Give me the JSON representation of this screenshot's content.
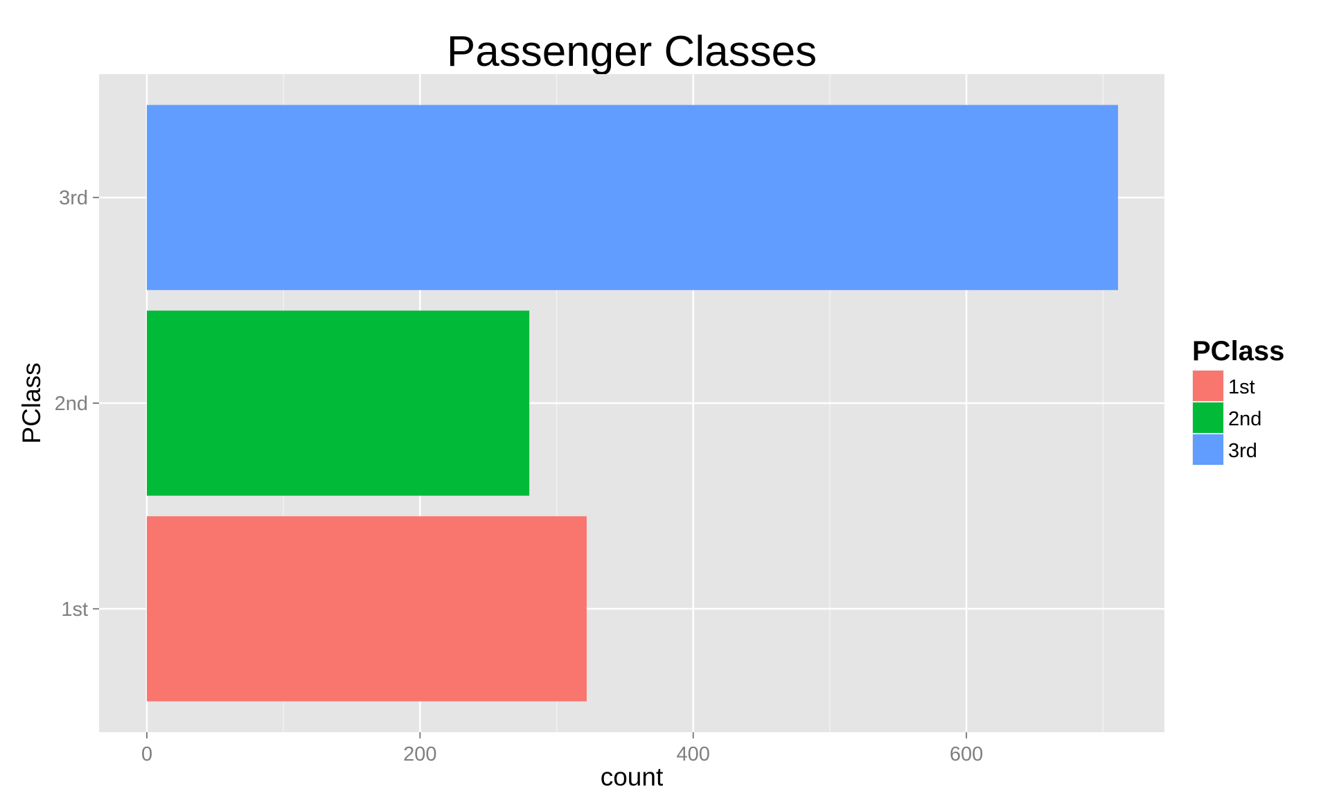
{
  "chart_data": {
    "type": "bar",
    "orientation": "horizontal",
    "title": "Passenger Classes",
    "xlabel": "count",
    "ylabel": "PClass",
    "categories": [
      "1st",
      "2nd",
      "3rd"
    ],
    "values": [
      322,
      280,
      711
    ],
    "colors": [
      "#F8766D",
      "#00BA38",
      "#619CFF"
    ],
    "xlim": [
      -35,
      745
    ],
    "xticks": [
      0,
      200,
      400,
      600
    ],
    "xtick_labels": [
      "0",
      "200",
      "400",
      "600"
    ],
    "grid": true,
    "panel_background": "#E5E5E5",
    "legend": {
      "title": "PClass",
      "placement": "right",
      "entries": [
        "1st",
        "2nd",
        "3rd"
      ]
    }
  }
}
